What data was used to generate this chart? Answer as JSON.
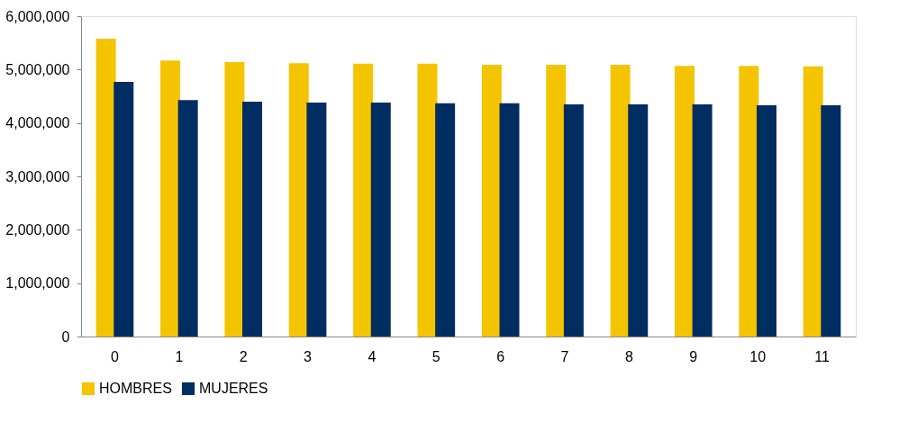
{
  "chart_data": {
    "type": "bar",
    "categories": [
      "0",
      "1",
      "2",
      "3",
      "4",
      "5",
      "6",
      "7",
      "8",
      "9",
      "10",
      "11"
    ],
    "series": [
      {
        "name": "HOMBRES",
        "color": "#f5c400",
        "values": [
          5580000,
          5170000,
          5140000,
          5120000,
          5110000,
          5110000,
          5090000,
          5090000,
          5090000,
          5070000,
          5070000,
          5060000
        ]
      },
      {
        "name": "MUJERES",
        "color": "#002d62",
        "values": [
          4770000,
          4430000,
          4400000,
          4380000,
          4380000,
          4370000,
          4370000,
          4350000,
          4350000,
          4350000,
          4330000,
          4330000
        ]
      }
    ],
    "ylim": [
      0,
      6000000
    ],
    "yticks": [
      {
        "value": 0,
        "label": "0"
      },
      {
        "value": 1000000,
        "label": "1,000,000"
      },
      {
        "value": 2000000,
        "label": "2,000,000"
      },
      {
        "value": 3000000,
        "label": "3,000,000"
      },
      {
        "value": 4000000,
        "label": "4,000,000"
      },
      {
        "value": 5000000,
        "label": "5,000,000"
      },
      {
        "value": 6000000,
        "label": "6,000,000"
      }
    ],
    "grid": false,
    "legend": "bottom"
  }
}
